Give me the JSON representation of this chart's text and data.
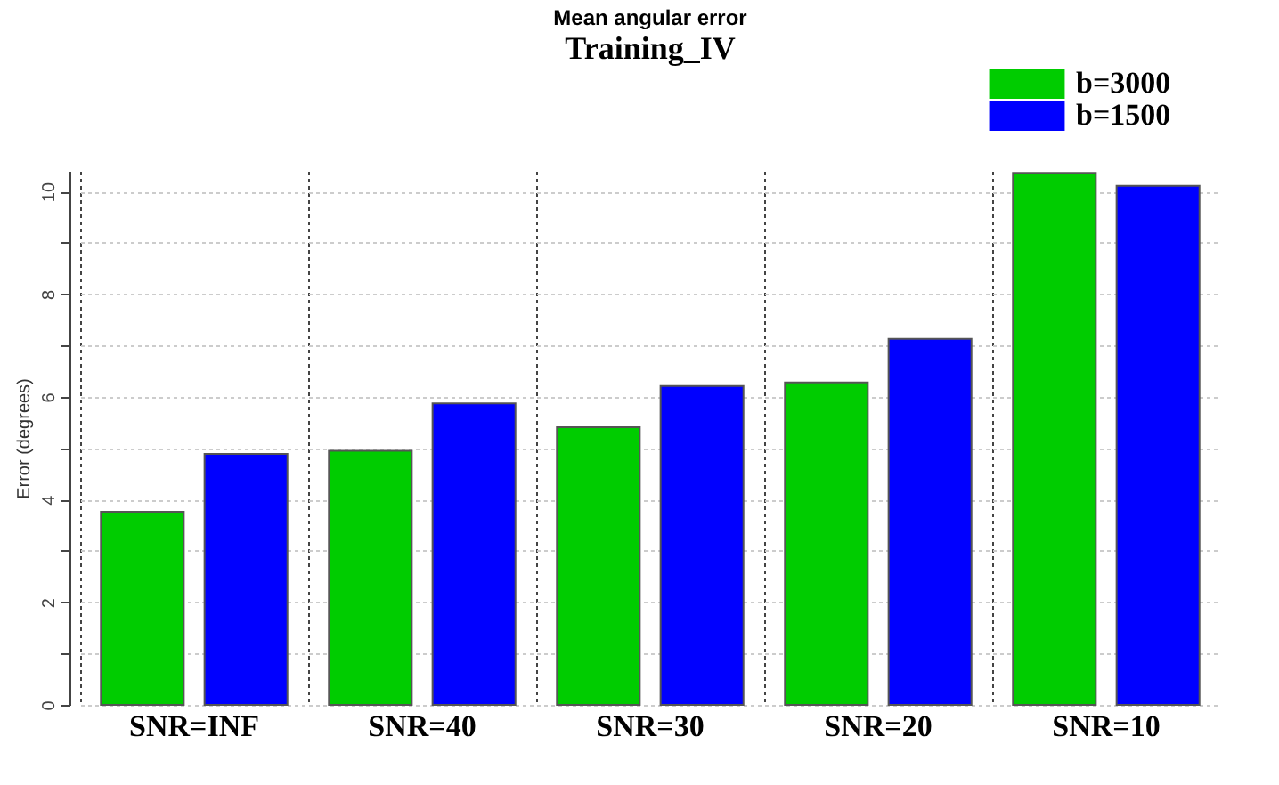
{
  "chart_data": {
    "type": "bar",
    "title": "Mean angular error",
    "subtitle": "Training_IV",
    "ylabel": "Error (degrees)",
    "categories": [
      "SNR=INF",
      "SNR=40",
      "SNR=30",
      "SNR=20",
      "SNR=10"
    ],
    "series": [
      {
        "name": "b=3000",
        "color": "#00cc00",
        "values": [
          3.76,
          4.95,
          5.41,
          6.28,
          10.36
        ]
      },
      {
        "name": "b=1500",
        "color": "#0000ff",
        "values": [
          4.89,
          5.87,
          6.21,
          7.13,
          10.11
        ]
      }
    ],
    "ylim": [
      0,
      10.4
    ],
    "yticks": [
      0,
      {
        "value": 1,
        "label": null
      },
      2,
      {
        "value": 3,
        "label": null
      },
      4,
      {
        "value": 5,
        "label": null
      },
      6,
      {
        "value": 7,
        "label": null
      },
      8,
      {
        "value": 9,
        "label": null
      },
      10
    ],
    "grid": true,
    "legend": "top right"
  }
}
